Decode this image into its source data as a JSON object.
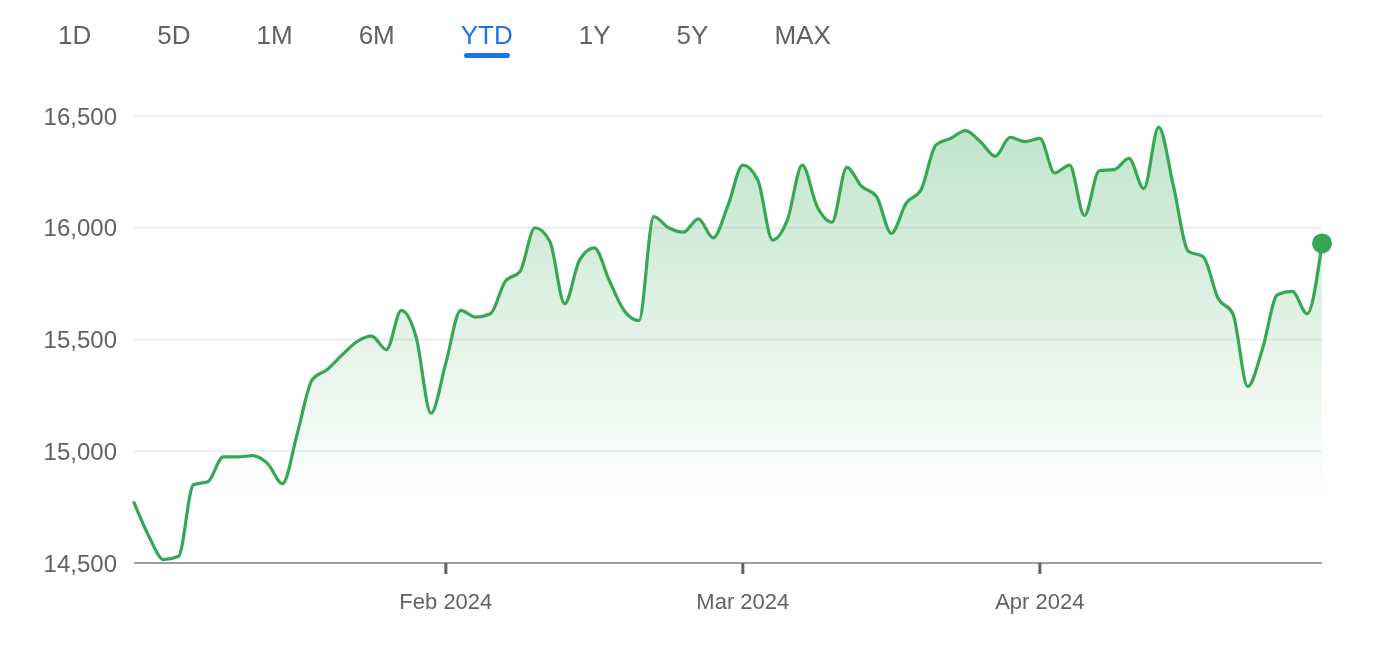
{
  "chart_data": {
    "type": "area",
    "annotations": [
      "1D",
      "5D",
      "1M",
      "6M",
      "YTD",
      "1Y",
      "5Y",
      "MAX"
    ],
    "categories": [
      null,
      null,
      null,
      null,
      null,
      null,
      null,
      null,
      null,
      null,
      null,
      null,
      null,
      null,
      null,
      null,
      null,
      null,
      null,
      null,
      null,
      "Feb 2024",
      null,
      null,
      null,
      null,
      null,
      null,
      null,
      null,
      null,
      null,
      null,
      null,
      null,
      null,
      null,
      null,
      null,
      null,
      null,
      "Mar 2024",
      null,
      null,
      null,
      null,
      null,
      null,
      null,
      null,
      null,
      null,
      null,
      null,
      null,
      null,
      null,
      null,
      null,
      null,
      null,
      "Apr 2024",
      null,
      null,
      null,
      null,
      null,
      null,
      null,
      null,
      null,
      null,
      null,
      null,
      null,
      null,
      null,
      null,
      null,
      null,
      null
    ],
    "series": [
      {
        "color": "#34a853",
        "values": [
          14770,
          14620,
          14515,
          14530,
          14850,
          14865,
          14975,
          14975,
          14980,
          14945,
          14855,
          15080,
          15320,
          15365,
          15430,
          15490,
          15515,
          15455,
          15630,
          15510,
          15170,
          15395,
          15630,
          15600,
          15615,
          15760,
          15805,
          16000,
          15940,
          15660,
          15855,
          15910,
          15765,
          15630,
          15585,
          16050,
          16000,
          15980,
          16040,
          15955,
          16100,
          16280,
          16215,
          15945,
          16035,
          16280,
          16095,
          16025,
          16270,
          16185,
          16140,
          15975,
          16110,
          16170,
          16370,
          16400,
          16435,
          16385,
          16320,
          16405,
          16385,
          16400,
          16245,
          16280,
          16055,
          16255,
          16260,
          16310,
          16175,
          16450,
          16185,
          15895,
          15870,
          15685,
          15615,
          15290,
          15460,
          15700,
          15715,
          15615,
          15930
        ]
      },
      {
        "type": "scatter",
        "color": "#34a853",
        "marker": "circle",
        "values": [
          null,
          null,
          null,
          null,
          null,
          null,
          null,
          null,
          null,
          null,
          null,
          null,
          null,
          null,
          null,
          null,
          null,
          null,
          null,
          null,
          null,
          null,
          null,
          null,
          null,
          null,
          null,
          null,
          null,
          null,
          null,
          null,
          null,
          null,
          null,
          null,
          null,
          null,
          null,
          null,
          null,
          null,
          null,
          null,
          null,
          null,
          null,
          null,
          null,
          null,
          null,
          null,
          null,
          null,
          null,
          null,
          null,
          null,
          null,
          null,
          null,
          null,
          null,
          null,
          null,
          null,
          null,
          null,
          null,
          null,
          null,
          null,
          null,
          null,
          null,
          null,
          null,
          null,
          null,
          null,
          15930
        ]
      }
    ],
    "ylim": [
      14500,
      16500
    ],
    "yticks": [
      {
        "value": 14500,
        "label": "14,500"
      },
      {
        "value": 15000,
        "label": "15,000"
      },
      {
        "value": 15500,
        "label": "15,500"
      },
      {
        "value": 16000,
        "label": "16,000"
      },
      {
        "value": 16500,
        "label": "16,500"
      }
    ],
    "grid": "y"
  }
}
